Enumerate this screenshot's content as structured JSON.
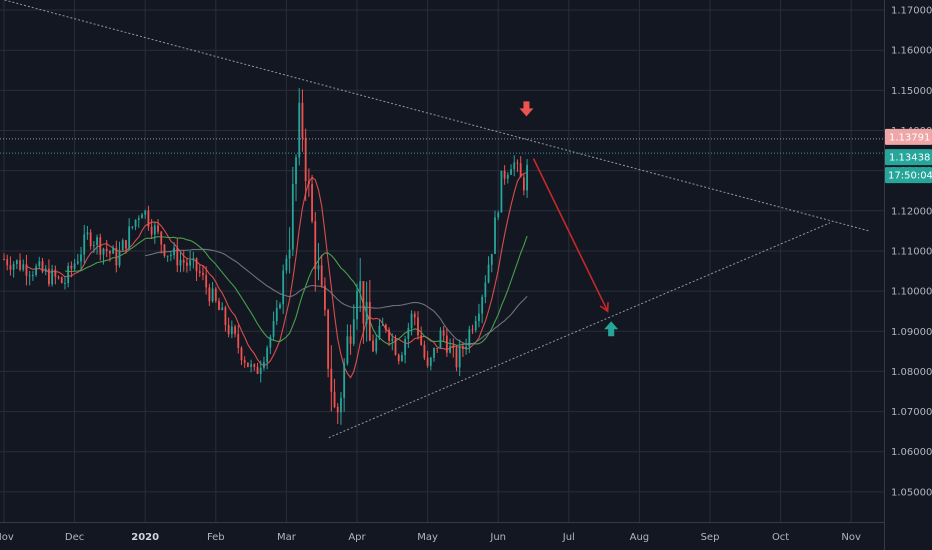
{
  "chart_data": {
    "type": "candlestick",
    "colors": {
      "background": "#131722",
      "grid": "#2a2e39",
      "up": "#26a69a",
      "down": "#ef5350",
      "axis_text": "#b2b5be",
      "trendline": "#9598a1",
      "ma_fast": "#ef5350",
      "ma_mid": "#4caf50",
      "ma_slow": "#787b86",
      "arrow_path": "#c62828",
      "marker_down": "#ef5350",
      "marker_up": "#26a69a",
      "price_tag_1": "#f0a6a6",
      "price_tag_2": "#26a69a",
      "timer_tag": "#26a69a",
      "hline": "#26a69a",
      "hline_dotted": "#9598a1"
    },
    "y_axis": {
      "ticks": [
        "1.17000",
        "1.16000",
        "1.15000",
        "1.14000",
        "1.13000",
        "1.12000",
        "1.11000",
        "1.10000",
        "1.09000",
        "1.08000",
        "1.07000",
        "1.06000",
        "1.05000"
      ],
      "tick_values": [
        1.17,
        1.16,
        1.15,
        1.14,
        1.13,
        1.12,
        1.11,
        1.1,
        1.09,
        1.08,
        1.07,
        1.06,
        1.05
      ],
      "range": [
        1.0425,
        1.1725
      ]
    },
    "x_axis": {
      "ticks": [
        "Nov",
        "Dec",
        "2020",
        "Feb",
        "Mar",
        "Apr",
        "May",
        "Jun",
        "Jul",
        "Aug",
        "Sep",
        "Oct",
        "Nov"
      ],
      "bold_index": 2
    },
    "price_tags": [
      {
        "label": "1.13791",
        "value": 1.13791
      },
      {
        "label": "1.13438",
        "value": 1.13438
      }
    ],
    "timer_tag": "17:50:04",
    "anchors": [
      {
        "month": 0.0,
        "price": 1.108
      },
      {
        "month": 0.5,
        "price": 1.105
      },
      {
        "month": 0.85,
        "price": 1.102
      },
      {
        "month": 1.2,
        "price": 1.114
      },
      {
        "month": 1.6,
        "price": 1.108
      },
      {
        "month": 1.95,
        "price": 1.121
      },
      {
        "month": 2.3,
        "price": 1.11
      },
      {
        "month": 2.75,
        "price": 1.105
      },
      {
        "month": 3.2,
        "price": 1.09
      },
      {
        "month": 3.55,
        "price": 1.079
      },
      {
        "month": 3.85,
        "price": 1.092
      },
      {
        "month": 4.05,
        "price": 1.115
      },
      {
        "month": 4.2,
        "price": 1.145
      },
      {
        "month": 4.35,
        "price": 1.118
      },
      {
        "month": 4.55,
        "price": 1.09
      },
      {
        "month": 4.7,
        "price": 1.067
      },
      {
        "month": 4.85,
        "price": 1.085
      },
      {
        "month": 5.0,
        "price": 1.105
      },
      {
        "month": 5.2,
        "price": 1.085
      },
      {
        "month": 5.4,
        "price": 1.092
      },
      {
        "month": 5.6,
        "price": 1.084
      },
      {
        "month": 5.8,
        "price": 1.095
      },
      {
        "month": 6.0,
        "price": 1.08
      },
      {
        "month": 6.2,
        "price": 1.09
      },
      {
        "month": 6.4,
        "price": 1.082
      },
      {
        "month": 6.55,
        "price": 1.088
      },
      {
        "month": 6.75,
        "price": 1.098
      },
      {
        "month": 6.9,
        "price": 1.11
      },
      {
        "month": 7.05,
        "price": 1.128
      },
      {
        "month": 7.2,
        "price": 1.133
      },
      {
        "month": 7.35,
        "price": 1.126
      },
      {
        "month": 7.45,
        "price": 1.133
      }
    ],
    "annotations": {
      "upper_trendline": {
        "from": {
          "month": -0.1,
          "price": 1.173
        },
        "to": {
          "month": 12.25,
          "price": 1.115
        }
      },
      "lower_trendline": {
        "from": {
          "month": 4.6,
          "price": 1.0635
        },
        "to": {
          "month": 11.7,
          "price": 1.117
        }
      },
      "arrow_path": [
        {
          "month": 7.5,
          "price": 1.133
        },
        {
          "month": 8.55,
          "price": 1.095
        }
      ],
      "down_marker": {
        "month": 7.4,
        "price": 1.145
      },
      "up_marker": {
        "month": 8.6,
        "price": 1.091
      }
    }
  }
}
